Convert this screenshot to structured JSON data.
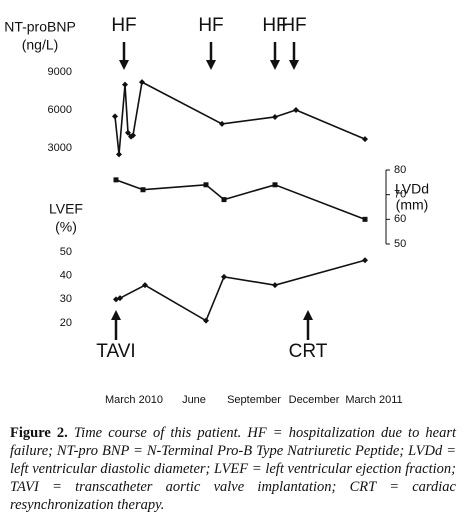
{
  "chart_data": [
    {
      "type": "line",
      "ylabel": [
        "NT-proBNP",
        "(ng/L)"
      ],
      "axis_side": "left",
      "marker": "diamond",
      "color": "#111111",
      "x": [
        2.05,
        2.25,
        2.55,
        2.7,
        2.85,
        2.95,
        3.4,
        7.4,
        10.05,
        11.1,
        14.55
      ],
      "values": [
        5500,
        2500,
        8000,
        4200,
        3900,
        4000,
        8200,
        4900,
        5450,
        6000,
        3700
      ],
      "xlim": [
        2,
        15
      ],
      "ylim": [
        3000,
        9000
      ],
      "yticks": [
        3000,
        6000,
        9000
      ],
      "annotations": [
        {
          "text": "HF",
          "x": 2.5,
          "direction": "down"
        },
        {
          "text": "HF",
          "x": 6.85,
          "direction": "down"
        },
        {
          "text": "HF",
          "x": 10.05,
          "direction": "down"
        },
        {
          "text": "HF",
          "x": 11.0,
          "direction": "down"
        }
      ]
    },
    {
      "type": "line",
      "ylabel": [
        "LVDd",
        "(mm)"
      ],
      "axis_side": "right",
      "marker": "square",
      "color": "#111111",
      "x": [
        2.1,
        3.45,
        6.6,
        7.5,
        10.05,
        14.55
      ],
      "values": [
        76,
        72,
        74,
        68,
        74,
        60
      ],
      "xlim": [
        2,
        15
      ],
      "ylim": [
        50,
        80
      ],
      "yticks": [
        50,
        60,
        70,
        80
      ]
    },
    {
      "type": "line",
      "ylabel": [
        "LVEF",
        "(%)"
      ],
      "axis_side": "left",
      "marker": "diamond",
      "color": "#111111",
      "x": [
        2.1,
        2.3,
        3.55,
        6.6,
        7.5,
        10.05,
        14.55
      ],
      "values": [
        30,
        30.5,
        36,
        21,
        39.5,
        36,
        46.5
      ],
      "xlim": [
        2,
        15
      ],
      "ylim": [
        20,
        50
      ],
      "yticks": [
        20,
        30,
        40,
        50
      ],
      "xticks": [
        {
          "value": 3,
          "label": "March 2010"
        },
        {
          "value": 6,
          "label": "June"
        },
        {
          "value": 9,
          "label": "September"
        },
        {
          "value": 12,
          "label": "December"
        },
        {
          "value": 15,
          "label": "March 2011"
        }
      ],
      "annotations": [
        {
          "text": "TAVI",
          "x": 2.1,
          "direction": "up"
        },
        {
          "text": "CRT",
          "x": 11.7,
          "direction": "up"
        }
      ]
    }
  ],
  "caption": {
    "label": "Figure 2.",
    "text": "Time course of this patient. HF = hospitalization due to heart failure; NT-pro BNP = N-Terminal Pro-B Type Natriuretic Peptide; LVDd = left ventricular diastolic diameter; LVEF = left ventricular ejection fraction; TAVI = transcatheter aortic valve implantation; CRT = cardiac resynchronization therapy."
  }
}
